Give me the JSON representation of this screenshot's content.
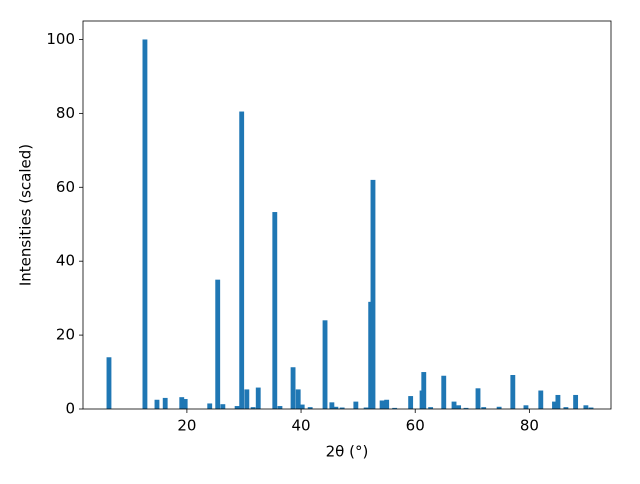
{
  "chart_data": {
    "type": "bar",
    "xlabel": "2θ (°)",
    "ylabel": "Intensities (scaled)",
    "x": [
      6.35,
      12.65,
      14.76,
      16.2,
      19.1,
      19.7,
      24.0,
      25.4,
      26.3,
      28.8,
      29.6,
      30.5,
      31.6,
      32.5,
      35.4,
      36.3,
      38.6,
      39.5,
      40.2,
      41.6,
      44.2,
      45.4,
      46.1,
      47.2,
      49.6,
      51.4,
      52.2,
      52.6,
      54.2,
      55.0,
      56.4,
      59.2,
      61.2,
      61.5,
      62.7,
      65.0,
      66.8,
      67.6,
      68.9,
      71.0,
      72.0,
      74.7,
      77.1,
      79.4,
      82.0,
      84.4,
      85.0,
      86.4,
      88.1,
      89.9,
      90.8
    ],
    "values": [
      14,
      100,
      2.5,
      3,
      3.2,
      2.7,
      1.5,
      35,
      1.3,
      0.8,
      80.5,
      5.3,
      0.5,
      5.8,
      53.3,
      0.8,
      11.3,
      5.3,
      1.2,
      0.5,
      24,
      1.8,
      0.6,
      0.4,
      2,
      0.4,
      29,
      62,
      2.3,
      2.5,
      0.3,
      3.5,
      5,
      10,
      0.5,
      9,
      2,
      1,
      0.3,
      5.6,
      0.5,
      0.6,
      9.2,
      1,
      5,
      2,
      3.8,
      0.5,
      3.8,
      1,
      0.4
    ],
    "color": "#1f77b4",
    "xlim": [
      1.8,
      94.3
    ],
    "xticks": [
      20,
      40,
      60,
      80
    ],
    "ylim": [
      0,
      105
    ],
    "yticks": [
      0,
      20,
      40,
      60,
      80,
      100
    ],
    "grid": false
  }
}
